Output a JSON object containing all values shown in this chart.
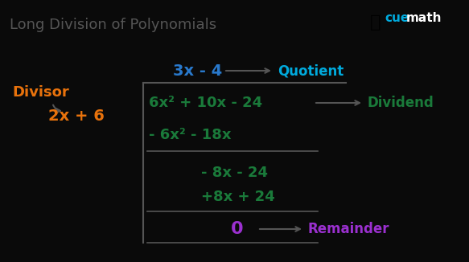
{
  "title": "Long Division of Polynomials",
  "background_color": "#0a0a0a",
  "title_color": "#555555",
  "orange_color": "#e8720c",
  "green_color": "#1a7a3a",
  "blue_color": "#2979cc",
  "purple_color": "#9b30d0",
  "white_color": "#ffffff",
  "cyan_color": "#00aadd",
  "dark_gray": "#444444",
  "divisor_label": "Divisor",
  "divisor_expr": "2x + 6",
  "quotient_expr": "3x - 4",
  "quotient_label": "Quotient",
  "dividend_expr": "6x² + 10x - 24",
  "dividend_label": "Dividend",
  "step1": "- 6x² - 18x",
  "step2": "- 8x - 24",
  "step3": "+8x + 24",
  "remainder": "0",
  "remainder_label": "Remainder"
}
